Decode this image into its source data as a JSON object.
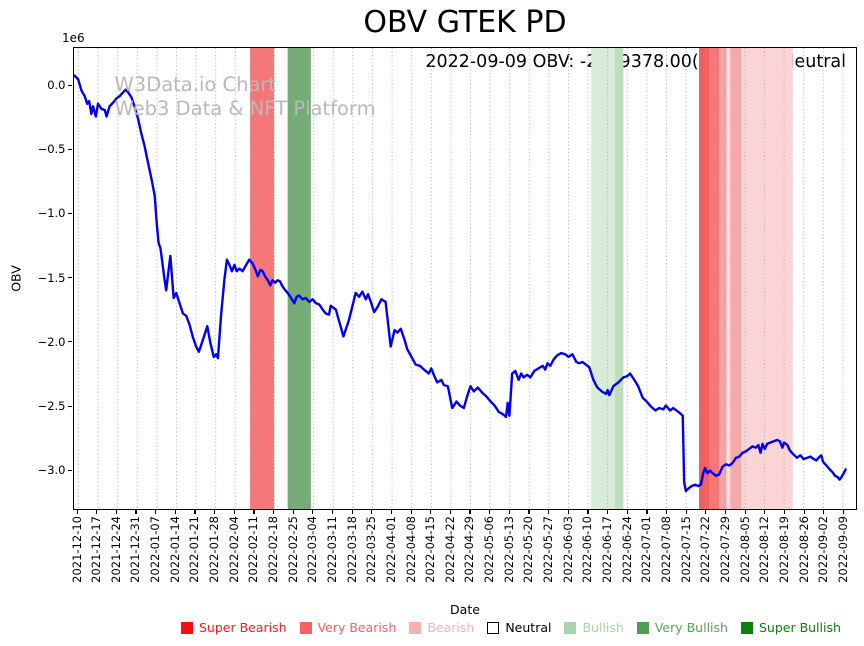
{
  "title": "OBV GTEK PD",
  "annotation": "2022-09-09 OBV: -2999378.00(+0.64%) Neutral",
  "watermark": {
    "line1": "W3Data.io Chart",
    "line2": "Web3 Data & NFT Platform"
  },
  "axes": {
    "y_label": "OBV",
    "x_label": "Date",
    "y_offset_label": "1e6",
    "y_tick_labels": [
      "0.0",
      "−0.5",
      "−1.0",
      "−1.5",
      "−2.0",
      "−2.5",
      "−3.0"
    ],
    "y_tick_values_e6": [
      0,
      -0.5,
      -1.0,
      -1.5,
      -2.0,
      -2.5,
      -3.0
    ]
  },
  "legend": [
    {
      "label": "Super Bearish",
      "color": "#fb0d0d",
      "text_color": "#fb1a1a",
      "border": "#fb0d0d"
    },
    {
      "label": "Very Bearish",
      "color": "#fc6060",
      "text_color": "#fc6060",
      "border": "#fc6060"
    },
    {
      "label": "Bearish",
      "color": "#fcb1b1",
      "text_color": "#fcb1b1",
      "border": "#fcb1b1"
    },
    {
      "label": "Neutral",
      "color": "#ffffff",
      "text_color": "#000000",
      "border": "#000000"
    },
    {
      "label": "Bullish",
      "color": "#abd3ab",
      "text_color": "#abd3ab",
      "border": "#abd3ab"
    },
    {
      "label": "Very Bullish",
      "color": "#4e9e4e",
      "text_color": "#57a257",
      "border": "#4e9e4e"
    },
    {
      "label": "Super Bullish",
      "color": "#0c800c",
      "text_color": "#0b800b",
      "border": "#0c800c"
    }
  ],
  "chart_data": {
    "type": "line",
    "title": "OBV GTEK PD",
    "xlabel": "Date",
    "ylabel": "OBV",
    "y_unit": "1e6",
    "ylim_e6": [
      -3.31,
      0.3
    ],
    "grid": "vertical-dotted",
    "line_color": "#0000f2",
    "grid_color": "#a9a9a9",
    "x_tick_labels": [
      "2021-12-10",
      "2021-12-17",
      "2021-12-24",
      "2021-12-31",
      "2022-01-07",
      "2022-01-14",
      "2022-01-21",
      "2022-01-28",
      "2022-02-04",
      "2022-02-11",
      "2022-02-18",
      "2022-02-25",
      "2022-03-04",
      "2022-03-11",
      "2022-03-18",
      "2022-03-25",
      "2022-04-01",
      "2022-04-08",
      "2022-04-15",
      "2022-04-22",
      "2022-04-29",
      "2022-05-06",
      "2022-05-13",
      "2022-05-20",
      "2022-05-27",
      "2022-06-03",
      "2022-06-10",
      "2022-06-17",
      "2022-06-24",
      "2022-07-01",
      "2022-07-08",
      "2022-07-15",
      "2022-07-22",
      "2022-07-29",
      "2022-08-05",
      "2022-08-12",
      "2022-08-19",
      "2022-08-26",
      "2022-09-02",
      "2022-09-09"
    ],
    "last_value": {
      "date": "2022-09-09",
      "obv": -2999378.0,
      "change_pct": "+0.64%",
      "signal": "Neutral"
    },
    "series": [
      {
        "name": "OBV",
        "note": "points are [days since 2021-12-10, OBV in millions]",
        "points": [
          [
            -1.4,
            0.08
          ],
          [
            -0.1,
            0.05
          ],
          [
            1.1,
            -0.04
          ],
          [
            2.2,
            -0.08
          ],
          [
            3.1,
            -0.14
          ],
          [
            3.8,
            -0.12
          ],
          [
            4.6,
            -0.22
          ],
          [
            5.2,
            -0.16
          ],
          [
            6.2,
            -0.24
          ],
          [
            7,
            -0.14
          ],
          [
            8.2,
            -0.18
          ],
          [
            9.4,
            -0.19
          ],
          [
            10,
            -0.24
          ],
          [
            11.1,
            -0.16
          ],
          [
            12.4,
            -0.13
          ],
          [
            13.5,
            -0.1
          ],
          [
            14.7,
            -0.08
          ],
          [
            16.8,
            -0.03
          ],
          [
            17.7,
            -0.05
          ],
          [
            18.9,
            -0.09
          ],
          [
            20,
            -0.16
          ],
          [
            21.3,
            -0.26
          ],
          [
            22.4,
            -0.37
          ],
          [
            23.6,
            -0.47
          ],
          [
            25,
            -0.62
          ],
          [
            26.2,
            -0.74
          ],
          [
            27.2,
            -0.86
          ],
          [
            28,
            -1.09
          ],
          [
            28.6,
            -1.23
          ],
          [
            29.3,
            -1.27
          ],
          [
            30.7,
            -1.51
          ],
          [
            31.3,
            -1.6
          ],
          [
            32.8,
            -1.33
          ],
          [
            34,
            -1.66
          ],
          [
            34.9,
            -1.62
          ],
          [
            36.1,
            -1.7
          ],
          [
            37.3,
            -1.78
          ],
          [
            38.5,
            -1.8
          ],
          [
            39.7,
            -1.87
          ],
          [
            40.8,
            -1.96
          ],
          [
            42,
            -2.04
          ],
          [
            43,
            -2.08
          ],
          [
            44.4,
            -1.99
          ],
          [
            46,
            -1.88
          ],
          [
            47.1,
            -2.01
          ],
          [
            48.3,
            -2.12
          ],
          [
            49.2,
            -2.1
          ],
          [
            49.8,
            -2.13
          ],
          [
            50.9,
            -1.8
          ],
          [
            52.1,
            -1.52
          ],
          [
            53,
            -1.36
          ],
          [
            53.9,
            -1.4
          ],
          [
            54.8,
            -1.45
          ],
          [
            55.7,
            -1.4
          ],
          [
            56.5,
            -1.45
          ],
          [
            57.5,
            -1.43
          ],
          [
            58.6,
            -1.45
          ],
          [
            59.9,
            -1.4
          ],
          [
            61,
            -1.36
          ],
          [
            62.2,
            -1.39
          ],
          [
            63.4,
            -1.45
          ],
          [
            64,
            -1.49
          ],
          [
            65,
            -1.44
          ],
          [
            65.8,
            -1.45
          ],
          [
            66.6,
            -1.49
          ],
          [
            67.6,
            -1.52
          ],
          [
            68.5,
            -1.56
          ],
          [
            69.3,
            -1.52
          ],
          [
            70.3,
            -1.54
          ],
          [
            71.1,
            -1.52
          ],
          [
            72,
            -1.53
          ],
          [
            72.9,
            -1.57
          ],
          [
            73.9,
            -1.6
          ],
          [
            74.7,
            -1.62
          ],
          [
            75.9,
            -1.66
          ],
          [
            77.1,
            -1.7
          ],
          [
            77.9,
            -1.65
          ],
          [
            78.8,
            -1.64
          ],
          [
            80,
            -1.67
          ],
          [
            81.2,
            -1.66
          ],
          [
            82.4,
            -1.69
          ],
          [
            83.6,
            -1.67
          ],
          [
            84.8,
            -1.7
          ],
          [
            86,
            -1.71
          ],
          [
            87.2,
            -1.75
          ],
          [
            88.3,
            -1.78
          ],
          [
            89.5,
            -1.79
          ],
          [
            90.1,
            -1.72
          ],
          [
            91.9,
            -1.75
          ],
          [
            94.6,
            -1.96
          ],
          [
            96.6,
            -1.83
          ],
          [
            99,
            -1.62
          ],
          [
            100.2,
            -1.65
          ],
          [
            101.4,
            -1.61
          ],
          [
            102.6,
            -1.67
          ],
          [
            103.4,
            -1.63
          ],
          [
            104.4,
            -1.69
          ],
          [
            105.6,
            -1.77
          ],
          [
            106.8,
            -1.73
          ],
          [
            108.2,
            -1.67
          ],
          [
            109.7,
            -1.69
          ],
          [
            111.5,
            -2.04
          ],
          [
            112.9,
            -1.91
          ],
          [
            113.9,
            -1.93
          ],
          [
            115.1,
            -1.9
          ],
          [
            116.5,
            -1.99
          ],
          [
            117.4,
            -2.06
          ],
          [
            118.9,
            -2.12
          ],
          [
            120.4,
            -2.18
          ],
          [
            121.9,
            -2.19
          ],
          [
            123.4,
            -2.22
          ],
          [
            125.1,
            -2.25
          ],
          [
            126,
            -2.21
          ],
          [
            126.9,
            -2.26
          ],
          [
            128.1,
            -2.32
          ],
          [
            129.6,
            -2.3
          ],
          [
            130.5,
            -2.34
          ],
          [
            131.9,
            -2.35
          ],
          [
            133.5,
            -2.52
          ],
          [
            135,
            -2.47
          ],
          [
            136.2,
            -2.5
          ],
          [
            137.6,
            -2.52
          ],
          [
            138.8,
            -2.43
          ],
          [
            140,
            -2.35
          ],
          [
            141.2,
            -2.39
          ],
          [
            142.6,
            -2.36
          ],
          [
            144.2,
            -2.4
          ],
          [
            145.7,
            -2.43
          ],
          [
            147.2,
            -2.47
          ],
          [
            148.6,
            -2.5
          ],
          [
            150.1,
            -2.55
          ],
          [
            151.7,
            -2.57
          ],
          [
            152.7,
            -2.59
          ],
          [
            153.3,
            -2.48
          ],
          [
            153.9,
            -2.58
          ],
          [
            154.9,
            -2.25
          ],
          [
            156,
            -2.23
          ],
          [
            157.2,
            -2.3
          ],
          [
            158.1,
            -2.25
          ],
          [
            159,
            -2.28
          ],
          [
            160.2,
            -2.26
          ],
          [
            161.4,
            -2.28
          ],
          [
            162.8,
            -2.23
          ],
          [
            164.3,
            -2.21
          ],
          [
            165.8,
            -2.19
          ],
          [
            166.7,
            -2.22
          ],
          [
            167.5,
            -2.17
          ],
          [
            168.5,
            -2.19
          ],
          [
            169.7,
            -2.14
          ],
          [
            170.9,
            -2.11
          ],
          [
            172.3,
            -2.09
          ],
          [
            173.8,
            -2.1
          ],
          [
            175,
            -2.12
          ],
          [
            176.4,
            -2.1
          ],
          [
            177.8,
            -2.16
          ],
          [
            178.9,
            -2.17
          ],
          [
            180,
            -2.16
          ],
          [
            181.2,
            -2.18
          ],
          [
            182.4,
            -2.2
          ],
          [
            183.9,
            -2.3
          ],
          [
            185.3,
            -2.36
          ],
          [
            186.9,
            -2.39
          ],
          [
            188.4,
            -2.41
          ],
          [
            189,
            -2.38
          ],
          [
            189.6,
            -2.42
          ],
          [
            191,
            -2.35
          ],
          [
            192.8,
            -2.32
          ],
          [
            194.6,
            -2.28
          ],
          [
            196,
            -2.27
          ],
          [
            197,
            -2.25
          ],
          [
            198.5,
            -2.3
          ],
          [
            199.9,
            -2.35
          ],
          [
            201.5,
            -2.44
          ],
          [
            202.9,
            -2.47
          ],
          [
            204.5,
            -2.51
          ],
          [
            206.1,
            -2.54
          ],
          [
            207.4,
            -2.52
          ],
          [
            208.9,
            -2.53
          ],
          [
            209.8,
            -2.5
          ],
          [
            211.3,
            -2.54
          ],
          [
            212.4,
            -2.52
          ],
          [
            213.6,
            -2.54
          ],
          [
            214.8,
            -2.56
          ],
          [
            215.8,
            -2.58
          ],
          [
            216.3,
            -3.1
          ],
          [
            216.9,
            -3.17
          ],
          [
            217.8,
            -3.15
          ],
          [
            219,
            -3.13
          ],
          [
            220.2,
            -3.12
          ],
          [
            221.3,
            -3.13
          ],
          [
            222.3,
            -3.12
          ],
          [
            223.1,
            -3.03
          ],
          [
            223.8,
            -2.99
          ],
          [
            224.6,
            -3.03
          ],
          [
            225.5,
            -3.01
          ],
          [
            226.5,
            -3.03
          ],
          [
            227.7,
            -3.05
          ],
          [
            228.8,
            -3.04
          ],
          [
            230,
            -2.98
          ],
          [
            231.2,
            -2.96
          ],
          [
            232.4,
            -2.97
          ],
          [
            233.6,
            -2.95
          ],
          [
            234.8,
            -2.91
          ],
          [
            236,
            -2.9
          ],
          [
            237.2,
            -2.87
          ],
          [
            238.3,
            -2.86
          ],
          [
            239.5,
            -2.84
          ],
          [
            240.7,
            -2.82
          ],
          [
            241.9,
            -2.83
          ],
          [
            242.8,
            -2.81
          ],
          [
            243.6,
            -2.87
          ],
          [
            244.3,
            -2.8
          ],
          [
            245.1,
            -2.84
          ],
          [
            246,
            -2.8
          ],
          [
            247.2,
            -2.79
          ],
          [
            248.3,
            -2.78
          ],
          [
            249.5,
            -2.77
          ],
          [
            250.5,
            -2.78
          ],
          [
            251.4,
            -2.83
          ],
          [
            252,
            -2.79
          ],
          [
            253.2,
            -2.81
          ],
          [
            254,
            -2.85
          ],
          [
            255.2,
            -2.88
          ],
          [
            256.6,
            -2.91
          ],
          [
            257.8,
            -2.89
          ],
          [
            259,
            -2.92
          ],
          [
            260.2,
            -2.91
          ],
          [
            261.4,
            -2.9
          ],
          [
            262.6,
            -2.92
          ],
          [
            263.5,
            -2.93
          ],
          [
            264.7,
            -2.9
          ],
          [
            265.3,
            -2.89
          ],
          [
            265.9,
            -2.94
          ],
          [
            267.1,
            -2.97
          ],
          [
            268.3,
            -3
          ],
          [
            269.2,
            -3.02
          ],
          [
            270.2,
            -3.05
          ],
          [
            271.1,
            -3.06
          ],
          [
            271.8,
            -3.08
          ],
          [
            272.5,
            -3.06
          ],
          [
            273.3,
            -3.03
          ],
          [
            274,
            -3
          ]
        ]
      }
    ],
    "bands": [
      {
        "label": "Very Bearish",
        "start_day": 61.3,
        "end_day": 69.8,
        "color": "#f57676"
      },
      {
        "label": "Very Bullish",
        "start_day": 74.7,
        "end_day": 83.0,
        "color": "#76ab76"
      },
      {
        "label": "Bullish",
        "start_day": 183.1,
        "end_day": 191.6,
        "color": "#d8ebd8"
      },
      {
        "label": "Bullish",
        "start_day": 191.6,
        "end_day": 194.6,
        "color": "#bedcbe"
      },
      {
        "label": "Very Bearish",
        "start_day": 221.6,
        "end_day": 225.2,
        "color": "#f06060"
      },
      {
        "label": "Very Bearish",
        "start_day": 225.2,
        "end_day": 228.8,
        "color": "#f57676"
      },
      {
        "label": "Bearish",
        "start_day": 228.8,
        "end_day": 231.4,
        "color": "#f9a2a2"
      },
      {
        "label": "Bearish",
        "start_day": 231.4,
        "end_day": 232.8,
        "color": "#fcdcdc"
      },
      {
        "label": "Bearish",
        "start_day": 232.8,
        "end_day": 236.7,
        "color": "#f7a8a8"
      },
      {
        "label": "Bearish",
        "start_day": 236.7,
        "end_day": 255.1,
        "color": "#fbd5d5"
      }
    ],
    "legend_position": "bottom"
  }
}
